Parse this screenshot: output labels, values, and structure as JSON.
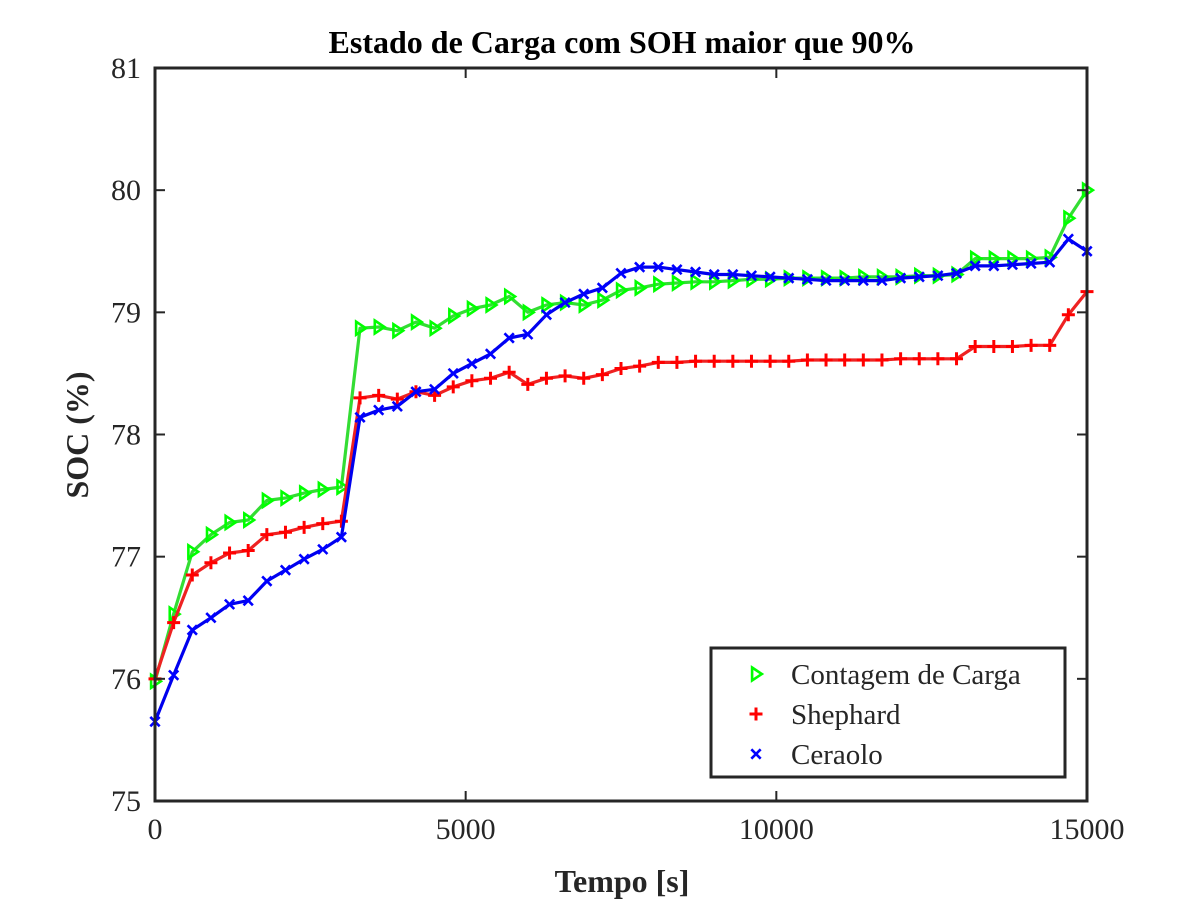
{
  "chart_data": {
    "type": "line",
    "title": "Estado de Carga com SOH maior que 90%",
    "xlabel": "Tempo [s]",
    "ylabel": "SOC (%)",
    "xlim": [
      0,
      15000
    ],
    "ylim": [
      75,
      81
    ],
    "xticks": [
      0,
      5000,
      10000,
      15000
    ],
    "xtick_labels": [
      "0",
      "5000",
      "10000",
      "15000"
    ],
    "yticks": [
      75,
      76,
      77,
      78,
      79,
      80,
      81
    ],
    "ytick_labels": [
      "75",
      "76",
      "77",
      "78",
      "79",
      "80",
      "81"
    ],
    "grid": false,
    "legend_position": "bottom-right",
    "series": [
      {
        "name": "Contagem de Carga",
        "color": "#00ff00",
        "line_color": "#33dd33",
        "marker": "triangle-right",
        "x": [
          0,
          300,
          600,
          900,
          1200,
          1500,
          1800,
          2100,
          2400,
          2700,
          3000,
          3300,
          3600,
          3900,
          4200,
          4500,
          4800,
          5100,
          5400,
          5700,
          6000,
          6300,
          6600,
          6900,
          7200,
          7500,
          7800,
          8100,
          8400,
          8700,
          9000,
          9300,
          9600,
          9900,
          10200,
          10500,
          10800,
          11100,
          11400,
          11700,
          12000,
          12300,
          12600,
          12900,
          13200,
          13500,
          13800,
          14100,
          14400,
          14700,
          15000
        ],
        "y": [
          75.98,
          76.53,
          77.04,
          77.18,
          77.28,
          77.3,
          77.46,
          77.48,
          77.52,
          77.55,
          77.57,
          78.87,
          78.88,
          78.85,
          78.92,
          78.87,
          78.97,
          79.03,
          79.06,
          79.13,
          79.0,
          79.06,
          79.08,
          79.06,
          79.1,
          79.18,
          79.2,
          79.23,
          79.24,
          79.25,
          79.25,
          79.26,
          79.27,
          79.27,
          79.28,
          79.28,
          79.28,
          79.28,
          79.29,
          79.29,
          79.29,
          79.3,
          79.3,
          79.31,
          79.44,
          79.44,
          79.44,
          79.44,
          79.45,
          79.77,
          80.0
        ]
      },
      {
        "name": "Shephard",
        "color": "#ff0000",
        "line_color": "#ee2222",
        "marker": "plus",
        "x": [
          0,
          300,
          600,
          900,
          1200,
          1500,
          1800,
          2100,
          2400,
          2700,
          3000,
          3300,
          3600,
          3900,
          4200,
          4500,
          4800,
          5100,
          5400,
          5700,
          6000,
          6300,
          6600,
          6900,
          7200,
          7500,
          7800,
          8100,
          8400,
          8700,
          9000,
          9300,
          9600,
          9900,
          10200,
          10500,
          10800,
          11100,
          11400,
          11700,
          12000,
          12300,
          12600,
          12900,
          13200,
          13500,
          13800,
          14100,
          14400,
          14700,
          15000
        ],
        "y": [
          76.0,
          76.46,
          76.85,
          76.95,
          77.03,
          77.05,
          77.18,
          77.2,
          77.24,
          77.27,
          77.29,
          78.3,
          78.32,
          78.29,
          78.35,
          78.32,
          78.39,
          78.44,
          78.46,
          78.51,
          78.41,
          78.46,
          78.48,
          78.46,
          78.49,
          78.54,
          78.56,
          78.59,
          78.59,
          78.6,
          78.6,
          78.6,
          78.6,
          78.6,
          78.6,
          78.61,
          78.61,
          78.61,
          78.61,
          78.61,
          78.62,
          78.62,
          78.62,
          78.62,
          78.72,
          78.72,
          78.72,
          78.73,
          78.73,
          78.98,
          79.17
        ]
      },
      {
        "name": "Ceraolo",
        "color": "#0000ff",
        "line_color": "#0000ee",
        "marker": "x",
        "x": [
          0,
          300,
          600,
          900,
          1200,
          1500,
          1800,
          2100,
          2400,
          2700,
          3000,
          3300,
          3600,
          3900,
          4200,
          4500,
          4800,
          5100,
          5400,
          5700,
          6000,
          6300,
          6600,
          6900,
          7200,
          7500,
          7800,
          8100,
          8400,
          8700,
          9000,
          9300,
          9600,
          9900,
          10200,
          10500,
          10800,
          11100,
          11400,
          11700,
          12000,
          12300,
          12600,
          12900,
          13200,
          13500,
          13800,
          14100,
          14400,
          14700,
          15000
        ],
        "y": [
          75.65,
          76.03,
          76.4,
          76.5,
          76.61,
          76.64,
          76.8,
          76.89,
          76.98,
          77.06,
          77.16,
          78.14,
          78.2,
          78.23,
          78.35,
          78.37,
          78.5,
          78.58,
          78.66,
          78.79,
          78.82,
          78.98,
          79.08,
          79.15,
          79.2,
          79.32,
          79.37,
          79.37,
          79.35,
          79.33,
          79.31,
          79.31,
          79.3,
          79.29,
          79.28,
          79.27,
          79.26,
          79.26,
          79.26,
          79.26,
          79.28,
          79.29,
          79.3,
          79.32,
          79.38,
          79.38,
          79.39,
          79.4,
          79.41,
          79.6,
          79.5
        ]
      }
    ]
  }
}
